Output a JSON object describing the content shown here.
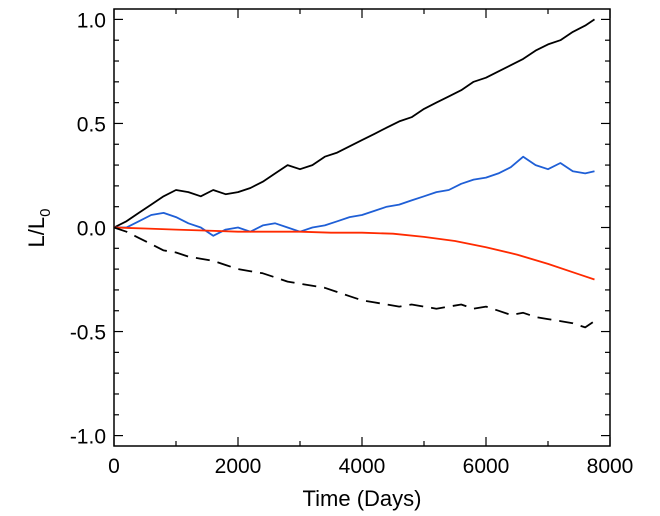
{
  "chart_data": {
    "type": "line",
    "xlabel": "Time (Days)",
    "ylabel": {
      "main": "L/L",
      "sub": "0"
    },
    "xlim": [
      0,
      8000
    ],
    "ylim": [
      -1.05,
      1.05
    ],
    "x_ticks": [
      0,
      2000,
      4000,
      6000,
      8000
    ],
    "x_tick_labels": [
      "0",
      "2000",
      "4000",
      "6000",
      "8000"
    ],
    "y_ticks": [
      -1.0,
      -0.5,
      0.0,
      0.5,
      1.0
    ],
    "y_tick_labels": [
      "-1.0",
      "-0.5",
      "0.0",
      "0.5",
      "1.0"
    ],
    "grid": false,
    "legend": "none",
    "series": [
      {
        "color": "#000000",
        "style": "solid",
        "x": [
          0,
          200,
          400,
          600,
          800,
          1000,
          1200,
          1400,
          1600,
          1800,
          2000,
          2200,
          2400,
          2600,
          2800,
          3000,
          3200,
          3400,
          3600,
          3800,
          4000,
          4200,
          4400,
          4600,
          4800,
          5000,
          5200,
          5400,
          5600,
          5800,
          6000,
          6200,
          6400,
          6600,
          6800,
          7000,
          7200,
          7400,
          7600,
          7750
        ],
        "y": [
          0.0,
          0.03,
          0.07,
          0.11,
          0.15,
          0.18,
          0.17,
          0.15,
          0.18,
          0.16,
          0.17,
          0.19,
          0.22,
          0.26,
          0.3,
          0.28,
          0.3,
          0.34,
          0.36,
          0.39,
          0.42,
          0.45,
          0.48,
          0.51,
          0.53,
          0.57,
          0.6,
          0.63,
          0.66,
          0.7,
          0.72,
          0.75,
          0.78,
          0.81,
          0.85,
          0.88,
          0.9,
          0.94,
          0.97,
          1.0
        ]
      },
      {
        "color": "#1f5fd6",
        "style": "solid",
        "x": [
          0,
          200,
          400,
          600,
          800,
          1000,
          1200,
          1400,
          1600,
          1800,
          2000,
          2200,
          2400,
          2600,
          2800,
          3000,
          3200,
          3400,
          3600,
          3800,
          4000,
          4200,
          4400,
          4600,
          4800,
          5000,
          5200,
          5400,
          5600,
          5800,
          6000,
          6200,
          6400,
          6600,
          6800,
          7000,
          7200,
          7400,
          7600,
          7750
        ],
        "y": [
          0.0,
          0.0,
          0.03,
          0.06,
          0.07,
          0.05,
          0.02,
          0.0,
          -0.04,
          -0.01,
          0.0,
          -0.02,
          0.01,
          0.02,
          0.0,
          -0.02,
          0.0,
          0.01,
          0.03,
          0.05,
          0.06,
          0.08,
          0.1,
          0.11,
          0.13,
          0.15,
          0.17,
          0.18,
          0.21,
          0.23,
          0.24,
          0.26,
          0.29,
          0.34,
          0.3,
          0.28,
          0.31,
          0.27,
          0.26,
          0.27
        ]
      },
      {
        "color": "#ff2a00",
        "style": "solid",
        "x": [
          0,
          500,
          1000,
          1500,
          2000,
          2500,
          3000,
          3500,
          4000,
          4500,
          5000,
          5500,
          6000,
          6500,
          7000,
          7500,
          7750
        ],
        "y": [
          0.0,
          -0.005,
          -0.01,
          -0.015,
          -0.02,
          -0.02,
          -0.02,
          -0.025,
          -0.025,
          -0.03,
          -0.045,
          -0.065,
          -0.095,
          -0.13,
          -0.175,
          -0.225,
          -0.25
        ]
      },
      {
        "color": "#000000",
        "style": "dashed",
        "x": [
          0,
          200,
          400,
          600,
          800,
          1000,
          1200,
          1400,
          1600,
          1800,
          2000,
          2200,
          2400,
          2600,
          2800,
          3000,
          3200,
          3400,
          3600,
          3800,
          4000,
          4200,
          4400,
          4600,
          4800,
          5000,
          5200,
          5400,
          5600,
          5800,
          6000,
          6200,
          6400,
          6600,
          6800,
          7000,
          7200,
          7400,
          7600,
          7750
        ],
        "y": [
          0.0,
          -0.02,
          -0.05,
          -0.08,
          -0.11,
          -0.12,
          -0.14,
          -0.15,
          -0.16,
          -0.18,
          -0.2,
          -0.21,
          -0.22,
          -0.24,
          -0.26,
          -0.27,
          -0.28,
          -0.29,
          -0.31,
          -0.33,
          -0.35,
          -0.36,
          -0.37,
          -0.38,
          -0.37,
          -0.38,
          -0.39,
          -0.38,
          -0.37,
          -0.39,
          -0.38,
          -0.4,
          -0.42,
          -0.41,
          -0.43,
          -0.44,
          -0.45,
          -0.46,
          -0.48,
          -0.45
        ]
      }
    ]
  }
}
